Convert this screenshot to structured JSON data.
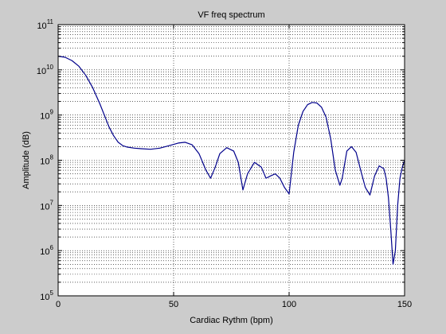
{
  "chart_data": {
    "type": "line",
    "title": "VF freq spectrum",
    "xlabel": "Cardiac Rythm (bpm)",
    "ylabel": "Amplitude (dB)",
    "xlim": [
      0,
      150
    ],
    "ylim": [
      100000,
      100000000000
    ],
    "yscale": "log",
    "grid": true,
    "xticks": [
      0,
      50,
      100,
      150
    ],
    "yticks": [
      {
        "base": "10",
        "exp": "5"
      },
      {
        "base": "10",
        "exp": "6"
      },
      {
        "base": "10",
        "exp": "7"
      },
      {
        "base": "10",
        "exp": "8"
      },
      {
        "base": "10",
        "exp": "9"
      },
      {
        "base": "10",
        "exp": "10"
      },
      {
        "base": "10",
        "exp": "11"
      }
    ],
    "line_color": "#00008b",
    "series": [
      {
        "x": [
          0,
          3,
          6,
          9,
          12,
          15,
          18,
          20,
          22,
          24,
          26,
          28,
          30,
          33,
          36,
          40,
          44,
          48,
          52,
          55,
          58,
          61,
          64,
          66,
          68,
          70,
          73,
          76,
          78,
          80,
          82,
          85,
          88,
          90,
          92,
          94,
          96,
          98,
          100,
          102,
          104,
          106,
          108,
          110,
          112,
          114,
          116,
          118,
          120,
          122,
          123,
          125,
          127,
          129,
          131,
          133,
          135,
          137,
          139,
          141,
          142,
          143,
          144,
          145,
          146,
          147,
          148,
          149,
          150
        ],
        "y": [
          20000000000,
          19000000000,
          16000000000,
          12000000000,
          7500000000,
          4000000000,
          1800000000,
          1000000000,
          550000000,
          350000000,
          250000000,
          210000000,
          195000000,
          185000000,
          180000000,
          175000000,
          185000000,
          210000000,
          240000000,
          250000000,
          220000000,
          140000000,
          60000000,
          40000000,
          70000000,
          140000000,
          190000000,
          160000000,
          90000000,
          22000000,
          50000000,
          90000000,
          70000000,
          40000000,
          45000000,
          50000000,
          40000000,
          25000000,
          18000000,
          150000000,
          600000000,
          1200000000,
          1700000000,
          1900000000,
          1850000000,
          1500000000,
          900000000,
          300000000,
          60000000,
          28000000,
          40000000,
          160000000,
          200000000,
          150000000,
          60000000,
          25000000,
          17000000,
          45000000,
          75000000,
          65000000,
          40000000,
          15000000,
          3000000,
          500000,
          1000000,
          10000000,
          40000000,
          70000000,
          100000000
        ]
      }
    ]
  }
}
